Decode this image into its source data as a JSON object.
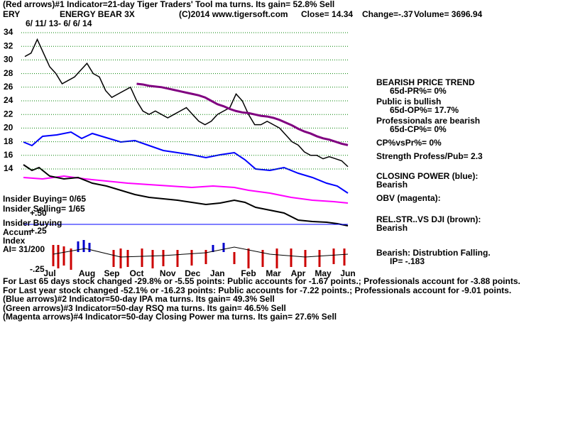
{
  "chart_data": {
    "type": "line",
    "symbol": "ERY",
    "title": "ENERGY BEAR 3X",
    "subtitle": "6/ 11/ 13- 6/ 6/ 14",
    "header": [
      "(Red arrows)#1 Indicator=21-day Tiger Traders' Tool ma turns. Its gain= 52.8% Sell",
      "(C)2014 www.tigersoft.com",
      "Close=  14.34",
      "Change=-.37",
      "Volume= 3696.94"
    ],
    "side_notes": [
      "BEARISH PRICE TREND",
      "65d-PR%= 0%",
      "Public is bullish",
      "65d-OP%= 17.7%",
      "Professionals are bearish",
      "65d-CP%= 0%",
      "CP%vsPr%=  0%",
      "Strength Profess/Pub= 2.3",
      "CLOSING POWER (blue):",
      "Bearish",
      "OBV (magenta):",
      "REL.STR..VS DJI (brown):",
      "Bearish",
      "Bearish: Distrubtion Falling.",
      "IP= -.183"
    ],
    "left_notes": [
      "Insider Buying= 0/65",
      "Insider Selling= 1/65",
      "Insider Buying",
      "+.50",
      "Accum",
      "+.25",
      "Index",
      "AI= 31/200",
      "-.25"
    ],
    "footer": [
      "For Last 65 days stock changed -29.8% or -5.55 points:  Public accounts for -1.67 points.;  Professionals account for -3.88 points.",
      "For Last year stock changed -52.1% or -16.23 points:  Public accounts for -7.22 points.;  Professionals account for -9.01 points.",
      "(Blue arrows)#2 Indicator=50-day IPA ma turns. Its gain= 49.3% Sell",
      "(Green arrows)#3 Indicator=50-day RSQ ma turns. Its gain= 46.5% Sell",
      "(Magenta arrows)#4 Indicator=50-day Closing Power ma turns. Its gain= 27.6% Sell"
    ],
    "categories": [
      null,
      null,
      null,
      null,
      "Jul",
      null,
      null,
      null,
      null,
      null,
      "Aug",
      null,
      null,
      null,
      "Sep",
      null,
      null,
      null,
      "Oct",
      null,
      null,
      null,
      null,
      "Nov",
      null,
      null,
      null,
      "Dec",
      null,
      null,
      null,
      "Jan",
      null,
      null,
      null,
      null,
      "Feb",
      null,
      null,
      null,
      "Mar",
      null,
      null,
      null,
      "Apr",
      null,
      null,
      null,
      "May",
      null,
      null,
      null,
      "Jun"
    ],
    "series": [
      {
        "color": "#000000",
        "values": [
          30.5,
          31,
          33,
          31,
          29,
          28,
          26.5,
          27,
          27.5,
          28.5,
          29.5,
          28,
          27.5,
          25.5,
          24.5,
          25,
          25.5,
          26,
          24,
          22.5,
          22,
          22.5,
          22,
          21.5,
          22,
          22.5,
          23,
          22,
          21,
          20.5,
          21,
          22,
          22.5,
          23,
          25,
          24,
          22,
          20.5,
          20.5,
          21,
          20.5,
          20,
          19,
          18,
          17.5,
          16.5,
          16,
          16,
          15.5,
          15.8,
          15.5,
          15.2,
          14.34
        ]
      },
      {
        "color": "#800080",
        "values": [
          null,
          null,
          null,
          null,
          null,
          null,
          null,
          null,
          null,
          null,
          null,
          null,
          null,
          null,
          null,
          null,
          null,
          null,
          26.5,
          26.4,
          26.2,
          26.1,
          26,
          25.8,
          25.6,
          25.4,
          25.2,
          25,
          24.8,
          24.5,
          24,
          23.5,
          23.2,
          22.8,
          22.5,
          22.3,
          22.2,
          22,
          21.8,
          21.7,
          21.5,
          21.2,
          20.8,
          20.4,
          19.9,
          19.5,
          19.2,
          18.8,
          18.5,
          18.3,
          18,
          17.7,
          17.5
        ]
      }
    ],
    "ylim": [
      14,
      34
    ],
    "yticks": [
      14,
      16,
      18,
      20,
      22,
      24,
      26,
      28,
      30,
      32,
      34
    ],
    "grid": true,
    "grid_color": "#008000"
  }
}
